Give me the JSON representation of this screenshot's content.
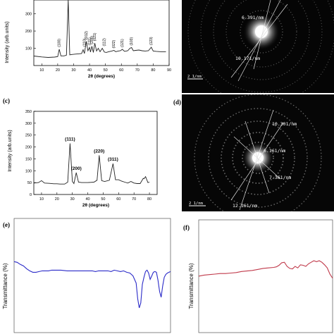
{
  "panel_labels": {
    "a": "",
    "b": "",
    "c": "(c)",
    "d": "(d)",
    "e": "(e)",
    "f": "(f)"
  },
  "saed_b": {
    "d1": "6.391/nm",
    "d2": "10.171/nm",
    "scale": "2 1/nm"
  },
  "saed_d": {
    "d1": "10.301/nm",
    "d2": "6.161/nm",
    "d3": "7.361/nm",
    "d4": "12.161/nm",
    "scale": "2 1/nm"
  },
  "chart_data": [
    {
      "id": "a",
      "type": "line",
      "ylabel": "Intensity (arb.units)",
      "xlabel": "2θ (degrees)",
      "xlim": [
        5,
        90
      ],
      "x_ticks": [
        "10",
        "20",
        "30",
        "40",
        "50",
        "60",
        "70",
        "80",
        "90"
      ],
      "y_ticks": [
        "300",
        "200",
        "100"
      ],
      "ylim": [
        0,
        380
      ],
      "series": [
        {
          "color": "#222222",
          "x": [
            5,
            10,
            14,
            18,
            20,
            21,
            22,
            24,
            25.5,
            26.6,
            27.6,
            29,
            31,
            33,
            35,
            36,
            36.8,
            38,
            39,
            40,
            40.6,
            41.5,
            42.4,
            43.3,
            44.4,
            45.5,
            46.6,
            48,
            49.3,
            50.5,
            52,
            54,
            55.3,
            56.5,
            58,
            59.4,
            60.6,
            62,
            64,
            65.4,
            66.4,
            67.5,
            69,
            71,
            73,
            75,
            77,
            78.8,
            80,
            82,
            85,
            88
          ],
          "y": [
            55,
            50,
            47,
            49,
            52,
            95,
            56,
            56,
            60,
            382,
            62,
            64,
            66,
            68,
            70,
            92,
            70,
            140,
            86,
            105,
            78,
            112,
            76,
            130,
            84,
            100,
            80,
            100,
            78,
            76,
            80,
            84,
            88,
            80,
            84,
            86,
            94,
            82,
            86,
            100,
            104,
            86,
            88,
            90,
            86,
            84,
            86,
            106,
            84,
            82,
            80,
            80
          ]
        }
      ],
      "peak_labels": [
        {
          "x": 21,
          "y": 95,
          "label": "(100)"
        },
        {
          "x": 36.8,
          "y": 98,
          "label": "(110)"
        },
        {
          "x": 38,
          "y": 140,
          "label": "(012)"
        },
        {
          "x": 40,
          "y": 105,
          "label": "(111)"
        },
        {
          "x": 41.5,
          "y": 112,
          "label": "(200)"
        },
        {
          "x": 43.3,
          "y": 130,
          "label": "(021)"
        },
        {
          "x": 49.3,
          "y": 100,
          "label": "(112)"
        },
        {
          "x": 55.3,
          "y": 88,
          "label": "(022)"
        },
        {
          "x": 60.6,
          "y": 94,
          "label": "(121)"
        },
        {
          "x": 66.4,
          "y": 104,
          "label": "(103)"
        },
        {
          "x": 78.8,
          "y": 106,
          "label": "(123)"
        }
      ]
    },
    {
      "id": "c",
      "type": "line",
      "ylabel": "Intensity (arb.units)",
      "xlabel": "2θ (degrees)",
      "xlim": [
        5,
        85
      ],
      "x_ticks": [
        "10",
        "20",
        "30",
        "40",
        "50",
        "60",
        "70",
        "80"
      ],
      "y_ticks": [
        "0",
        "50",
        "100",
        "150",
        "200",
        "250",
        "300",
        "350"
      ],
      "ylim": [
        0,
        350
      ],
      "series": [
        {
          "color": "#222222",
          "x": [
            5,
            8,
            10,
            12,
            15,
            18,
            20,
            22,
            25,
            27,
            28.5,
            30,
            31,
            32.5,
            34,
            36,
            40,
            44,
            46,
            47.4,
            49,
            51,
            54,
            56.4,
            58,
            60,
            62,
            64,
            66,
            68,
            70,
            72,
            74,
            76,
            76.5,
            77.5,
            79,
            80
          ],
          "y": [
            48,
            50,
            58,
            48,
            47,
            45,
            45,
            44,
            44,
            52,
            215,
            55,
            46,
            92,
            52,
            50,
            50,
            52,
            60,
            165,
            58,
            55,
            60,
            130,
            62,
            62,
            56,
            52,
            48,
            55,
            48,
            46,
            46,
            68,
            66,
            75,
            50,
            52
          ]
        }
      ],
      "peak_labels": [
        {
          "x": 28.5,
          "y": 215,
          "label": "(111)"
        },
        {
          "x": 32.5,
          "y": 92,
          "label": "(200)"
        },
        {
          "x": 47.4,
          "y": 165,
          "label": "(220)"
        },
        {
          "x": 56.4,
          "y": 130,
          "label": "(311)"
        }
      ]
    },
    {
      "id": "e",
      "type": "line",
      "ylabel": "Transmittance (%)",
      "xlabel": "",
      "series": [
        {
          "color": "#2a2ac8",
          "x": [
            0,
            2,
            4,
            6,
            8,
            10,
            12,
            14,
            16,
            18,
            20,
            22,
            24,
            26,
            28,
            30,
            34,
            38,
            42,
            46,
            50,
            52,
            54,
            56,
            58,
            60,
            62,
            64,
            66,
            68,
            70,
            72,
            74,
            76,
            78,
            79,
            80,
            81,
            82,
            83,
            84,
            85,
            86,
            87,
            88,
            89,
            90,
            91,
            92,
            93,
            94,
            95,
            96,
            97,
            98,
            99,
            100
          ],
          "y": [
            70,
            69,
            66,
            64,
            60,
            57,
            55,
            55,
            56,
            57,
            57,
            57,
            58,
            58,
            58,
            58,
            57,
            57,
            57,
            57,
            57,
            56,
            57,
            57,
            57,
            57,
            56,
            58,
            57,
            56,
            57,
            55,
            54,
            50,
            40,
            18,
            5,
            12,
            38,
            48,
            56,
            58,
            54,
            45,
            50,
            55,
            56,
            55,
            44,
            28,
            20,
            36,
            48,
            52,
            54,
            55,
            56
          ]
        }
      ]
    },
    {
      "id": "f",
      "type": "line",
      "ylabel": "Transmittance (%)",
      "xlabel": "",
      "series": [
        {
          "color": "#c0394a",
          "x": [
            0,
            4,
            8,
            12,
            16,
            20,
            24,
            28,
            32,
            36,
            40,
            44,
            48,
            52,
            56,
            58,
            60,
            62,
            64,
            66,
            68,
            70,
            72,
            74,
            76,
            78,
            80,
            82,
            84,
            86,
            88,
            90,
            92,
            94,
            96,
            98,
            100
          ],
          "y": [
            44,
            46,
            47,
            48,
            49,
            49,
            50,
            51,
            53,
            54,
            55,
            57,
            59,
            60,
            61,
            62,
            65,
            70,
            71,
            63,
            59,
            58,
            63,
            60,
            66,
            65,
            63,
            68,
            71,
            74,
            72,
            74,
            71,
            66,
            60,
            48,
            40
          ]
        }
      ]
    }
  ]
}
